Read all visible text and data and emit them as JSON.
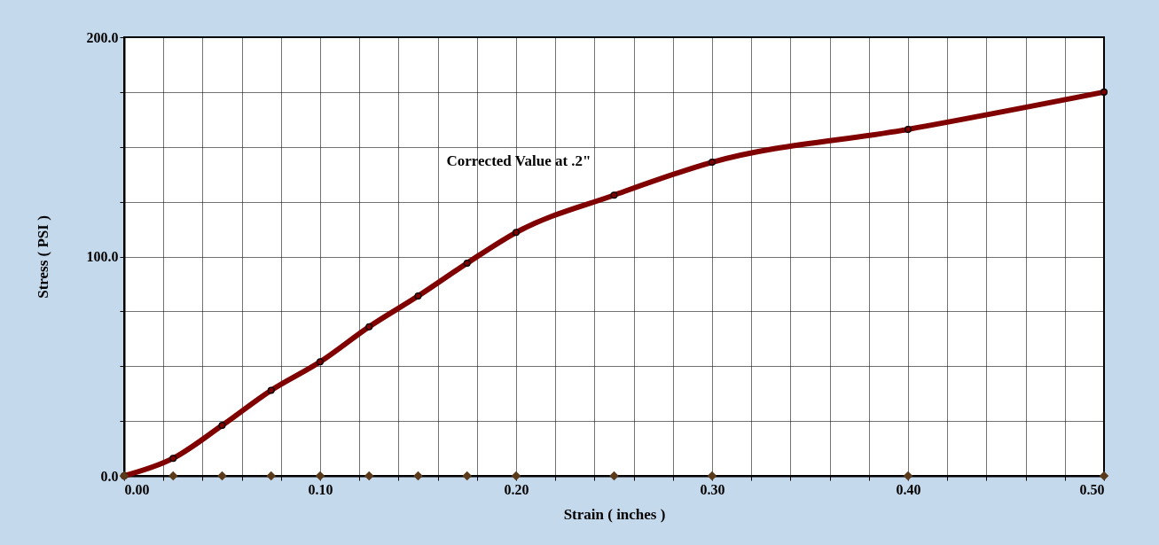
{
  "chart_data": {
    "type": "line",
    "xlabel": "Strain ( inches )",
    "ylabel": "Stress ( PSI )",
    "annotations": [
      "Corrected Value at .2\""
    ],
    "x": [
      0,
      0.025,
      0.05,
      0.075,
      0.1,
      0.125,
      0.15,
      0.175,
      0.2,
      0.25,
      0.3,
      0.4,
      0.5
    ],
    "series": [
      {
        "type": "line",
        "color": "#800000",
        "marker": "circle",
        "values": [
          0,
          8,
          23,
          39,
          52,
          68,
          82,
          97,
          111,
          128,
          143,
          158,
          175
        ]
      },
      {
        "type": "scatter",
        "color": "#5a3a1a",
        "marker": "diamond",
        "values": [
          0,
          0,
          0,
          0,
          0,
          0,
          0,
          0,
          0,
          0,
          0,
          0,
          0
        ]
      }
    ],
    "xlim": [
      0,
      0.5
    ],
    "xticks": [
      {
        "value": 0,
        "label": "0.00"
      },
      {
        "value": 0.02,
        "label": null
      },
      {
        "value": 0.04,
        "label": null
      },
      {
        "value": 0.06,
        "label": null
      },
      {
        "value": 0.08,
        "label": null
      },
      {
        "value": 0.1,
        "label": "0.10"
      },
      {
        "value": 0.12,
        "label": null
      },
      {
        "value": 0.14,
        "label": null
      },
      {
        "value": 0.16,
        "label": null
      },
      {
        "value": 0.18,
        "label": null
      },
      {
        "value": 0.2,
        "label": "0.20"
      },
      {
        "value": 0.22,
        "label": null
      },
      {
        "value": 0.24,
        "label": null
      },
      {
        "value": 0.26,
        "label": null
      },
      {
        "value": 0.28,
        "label": null
      },
      {
        "value": 0.3,
        "label": "0.30"
      },
      {
        "value": 0.32,
        "label": null
      },
      {
        "value": 0.34,
        "label": null
      },
      {
        "value": 0.36,
        "label": null
      },
      {
        "value": 0.38,
        "label": null
      },
      {
        "value": 0.4,
        "label": "0.40"
      },
      {
        "value": 0.42,
        "label": null
      },
      {
        "value": 0.44,
        "label": null
      },
      {
        "value": 0.46,
        "label": null
      },
      {
        "value": 0.48,
        "label": null
      },
      {
        "value": 0.5,
        "label": "0.50"
      }
    ],
    "ylim": [
      0,
      200
    ],
    "yticks": [
      {
        "value": 0,
        "label": "0.0"
      },
      {
        "value": 25,
        "label": null
      },
      {
        "value": 50,
        "label": null
      },
      {
        "value": 75,
        "label": null
      },
      {
        "value": 100,
        "label": "100.0"
      },
      {
        "value": 125,
        "label": null
      },
      {
        "value": 150,
        "label": null
      },
      {
        "value": 175,
        "label": null
      },
      {
        "value": 200,
        "label": "200.0"
      }
    ],
    "grid": true
  }
}
